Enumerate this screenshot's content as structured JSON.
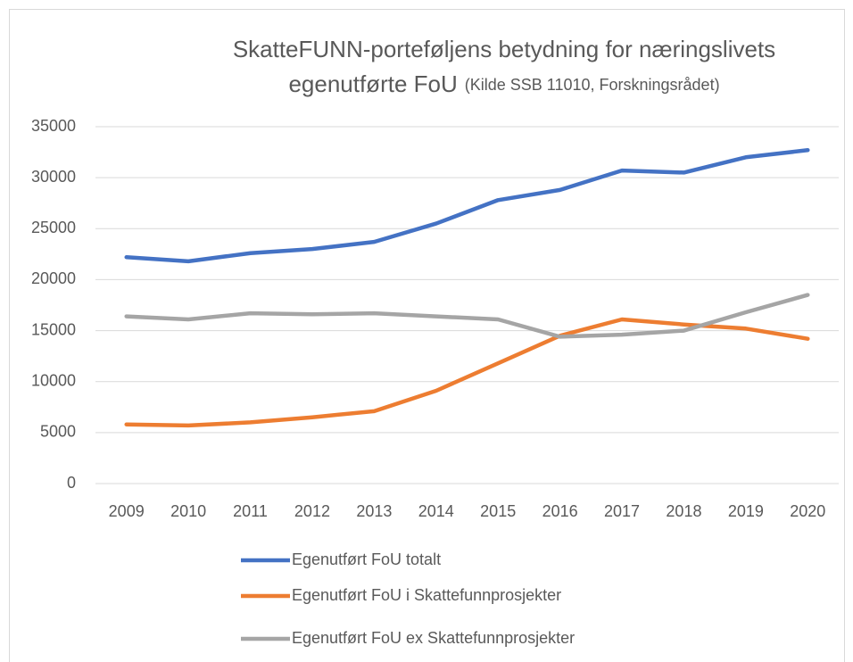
{
  "chart_data": {
    "type": "line",
    "title": [
      "SkatteFUNN-porteføljens betydning for næringslivets",
      "egenutførte FoU"
    ],
    "subtitle": "(Kilde SSB 11010, Forskningsrådet)",
    "categories": [
      "2009",
      "2010",
      "2011",
      "2012",
      "2013",
      "2014",
      "2015",
      "2016",
      "2017",
      "2018",
      "2019",
      "2020"
    ],
    "series": [
      {
        "name": "Egenutført FoU totalt",
        "color": "#4472c4",
        "values": [
          22200,
          21800,
          22600,
          23000,
          23700,
          25500,
          27800,
          28800,
          30700,
          30500,
          32000,
          32700
        ]
      },
      {
        "name": "Egenutført FoU i Skattefunnprosjekter",
        "color": "#ed7d31",
        "values": [
          5800,
          5700,
          6000,
          6500,
          7100,
          9100,
          11800,
          14500,
          16100,
          15600,
          15200,
          14200
        ]
      },
      {
        "name": "Egenutført FoU ex Skattefunnprosjekter",
        "color": "#a5a5a5",
        "values": [
          16400,
          16100,
          16700,
          16600,
          16700,
          16400,
          16100,
          14400,
          14600,
          15000,
          16800,
          18500
        ]
      }
    ],
    "ylim": [
      0,
      35000
    ],
    "yticks": [
      0,
      5000,
      10000,
      15000,
      20000,
      25000,
      30000,
      35000
    ],
    "grid": true,
    "legend": "bottom"
  }
}
